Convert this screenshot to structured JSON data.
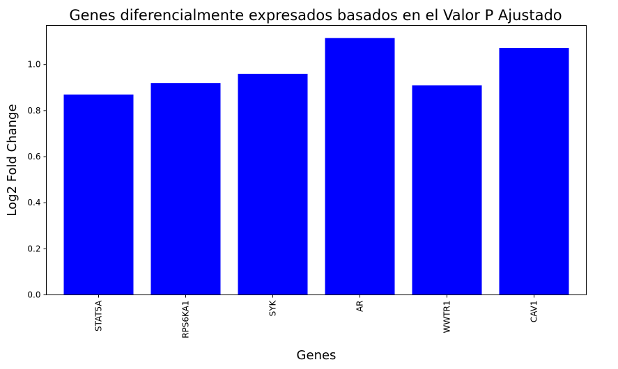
{
  "colors": {
    "bar": "#0000ff",
    "axis": "#000000",
    "background": "#ffffff"
  },
  "chart_data": {
    "type": "bar",
    "title": "Genes diferencialmente expresados basados en el Valor P Ajustado",
    "xlabel": "Genes",
    "ylabel": "Log2 Fold Change",
    "categories": [
      "STAT5A",
      "RPS6KA1",
      "SYK",
      "AR",
      "WWTR1",
      "CAV1"
    ],
    "values": [
      0.87,
      0.92,
      0.96,
      1.115,
      0.91,
      1.072
    ],
    "yticks": [
      "0.0",
      "0.2",
      "0.4",
      "0.6",
      "0.8",
      "1.0"
    ],
    "ylim": [
      0,
      1.17
    ],
    "grid": false,
    "legend": "none"
  }
}
